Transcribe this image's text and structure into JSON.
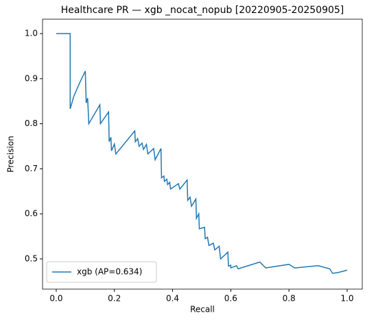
{
  "chart_data": {
    "type": "line",
    "title": "Healthcare PR — xgb _nocat_nopub [20220905-20250905]",
    "x_label": "Recall",
    "y_label": "Precision",
    "xlim": [
      -0.047,
      1.052
    ],
    "ylim": [
      0.433,
      1.032
    ],
    "xticks": [
      {
        "value": 0,
        "label": "0.0"
      },
      0.2,
      0.4,
      0.6,
      0.8,
      {
        "value": 1,
        "label": "1.0"
      }
    ],
    "yticks": [
      0.5,
      0.6,
      0.7,
      0.8,
      0.9,
      {
        "value": 1,
        "label": "1.0"
      }
    ],
    "grid": false,
    "legend": "lower left",
    "series": [
      {
        "name": "xgb (AP=0.634)",
        "color": "#1f77b4",
        "x": [
          0,
          0.048,
          0.048,
          0.06,
          0.08,
          0.1,
          0.103,
          0.108,
          0.112,
          0.15,
          0.152,
          0.18,
          0.182,
          0.188,
          0.19,
          0.2,
          0.205,
          0.27,
          0.272,
          0.28,
          0.285,
          0.295,
          0.3,
          0.31,
          0.315,
          0.335,
          0.34,
          0.36,
          0.362,
          0.37,
          0.372,
          0.38,
          0.383,
          0.39,
          0.393,
          0.42,
          0.425,
          0.45,
          0.452,
          0.46,
          0.465,
          0.48,
          0.482,
          0.49,
          0.492,
          0.51,
          0.512,
          0.52,
          0.525,
          0.54,
          0.545,
          0.56,
          0.565,
          0.59,
          0.592,
          0.6,
          0.6,
          0.62,
          0.625,
          0.65,
          0.7,
          0.72,
          0.8,
          0.82,
          0.9,
          0.94,
          0.95,
          0.97,
          1.0
        ],
        "values": [
          1,
          1,
          0.833,
          0.86,
          0.89,
          0.917,
          0.846,
          0.857,
          0.8,
          0.842,
          0.8,
          0.826,
          0.76,
          0.77,
          0.74,
          0.755,
          0.733,
          0.784,
          0.76,
          0.767,
          0.75,
          0.757,
          0.743,
          0.754,
          0.733,
          0.745,
          0.72,
          0.745,
          0.68,
          0.684,
          0.672,
          0.677,
          0.665,
          0.67,
          0.655,
          0.667,
          0.655,
          0.675,
          0.63,
          0.637,
          0.617,
          0.633,
          0.59,
          0.6,
          0.567,
          0.57,
          0.545,
          0.548,
          0.53,
          0.535,
          0.52,
          0.528,
          0.5,
          0.515,
          0.484,
          0.486,
          0.48,
          0.485,
          0.478,
          0.483,
          0.493,
          0.48,
          0.488,
          0.48,
          0.485,
          0.478,
          0.468,
          0.47,
          0.475
        ]
      }
    ]
  }
}
